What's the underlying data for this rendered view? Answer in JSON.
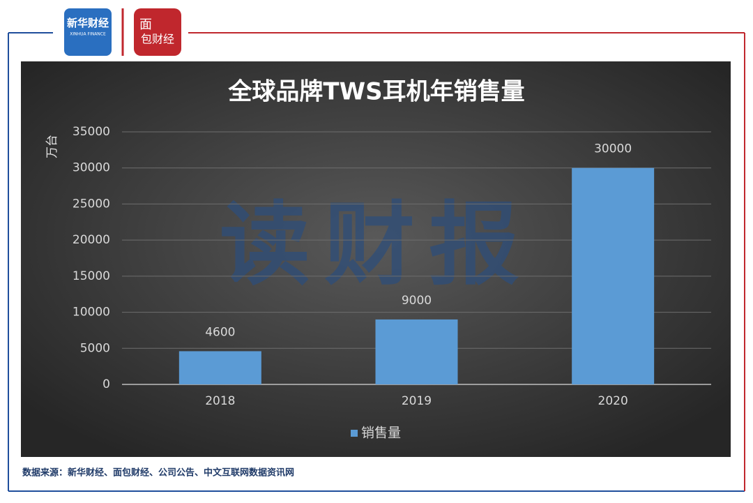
{
  "branding": {
    "xinhua_name": "新华财经",
    "xinhua_en": "XINHUA FINANCE",
    "mianbao_top": "面",
    "mianbao_bottom": "包财经"
  },
  "chart_data": {
    "type": "bar",
    "title": "全球品牌TWS耳机年销售量",
    "y_label": "万台",
    "categories": [
      "2018",
      "2019",
      "2020"
    ],
    "series": [
      {
        "name": "销售量",
        "color": "#5b9bd5",
        "values": [
          4600,
          9000,
          30000
        ]
      }
    ],
    "ylim": [
      0,
      35000
    ],
    "yticks": [
      0,
      5000,
      10000,
      15000,
      20000,
      25000,
      30000,
      35000
    ],
    "grid": true,
    "legend": "bottom",
    "watermark": "读财报",
    "source": "数据来源：新华财经、面包财经、公司公告、中文互联网数据资讯网"
  }
}
